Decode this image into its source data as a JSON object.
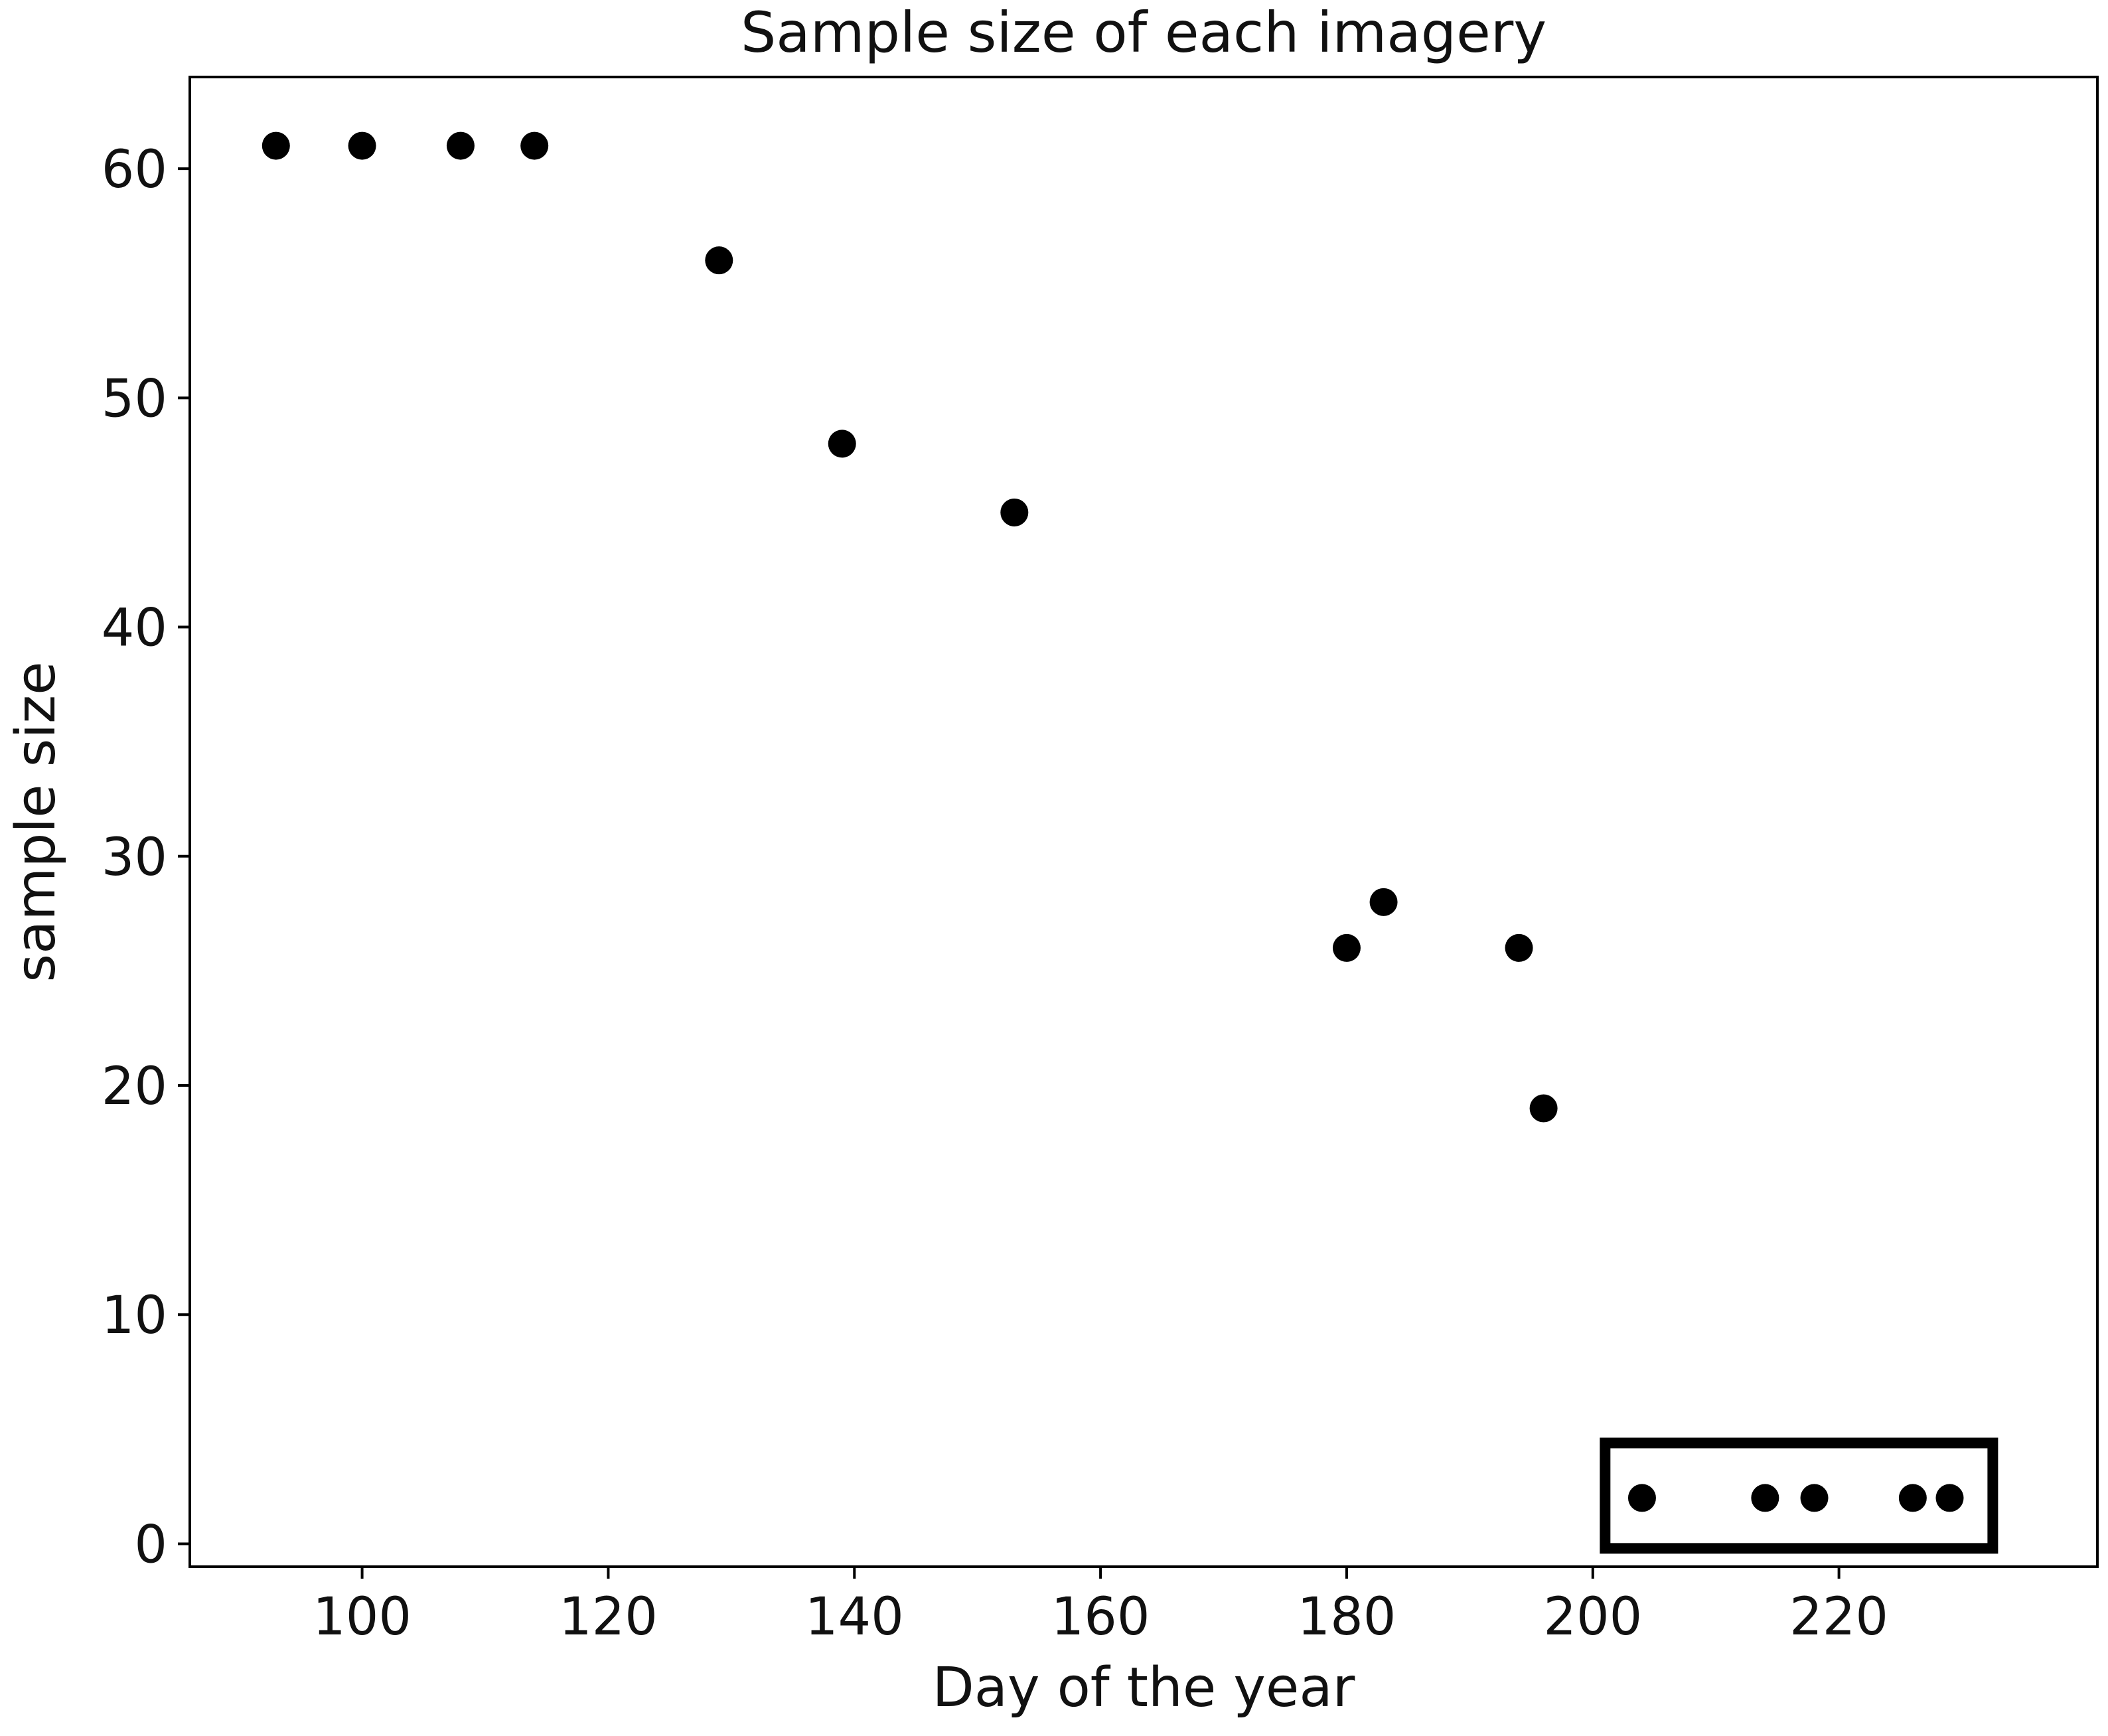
{
  "chart_data": {
    "type": "scatter",
    "title": "Sample size of each imagery",
    "xlabel": "Day of the year",
    "ylabel": "sample size",
    "xlim": [
      86,
      241
    ],
    "ylim": [
      -1,
      64
    ],
    "x_ticks": [
      100,
      120,
      140,
      160,
      180,
      200,
      220
    ],
    "y_ticks": [
      0,
      10,
      20,
      30,
      40,
      50,
      60
    ],
    "grid": false,
    "legend": "none",
    "marker_color": "#000000",
    "points": [
      {
        "x": 93,
        "y": 61
      },
      {
        "x": 100,
        "y": 61
      },
      {
        "x": 108,
        "y": 61
      },
      {
        "x": 114,
        "y": 61
      },
      {
        "x": 129,
        "y": 56
      },
      {
        "x": 139,
        "y": 48
      },
      {
        "x": 153,
        "y": 45
      },
      {
        "x": 180,
        "y": 26
      },
      {
        "x": 183,
        "y": 28
      },
      {
        "x": 194,
        "y": 26
      },
      {
        "x": 196,
        "y": 19
      },
      {
        "x": 204,
        "y": 2
      },
      {
        "x": 214,
        "y": 2
      },
      {
        "x": 218,
        "y": 2
      },
      {
        "x": 226,
        "y": 2
      },
      {
        "x": 229,
        "y": 2
      }
    ],
    "highlight_box": {
      "x_range": [
        201,
        232.5
      ],
      "y_range": [
        -0.2,
        4.4
      ]
    }
  }
}
